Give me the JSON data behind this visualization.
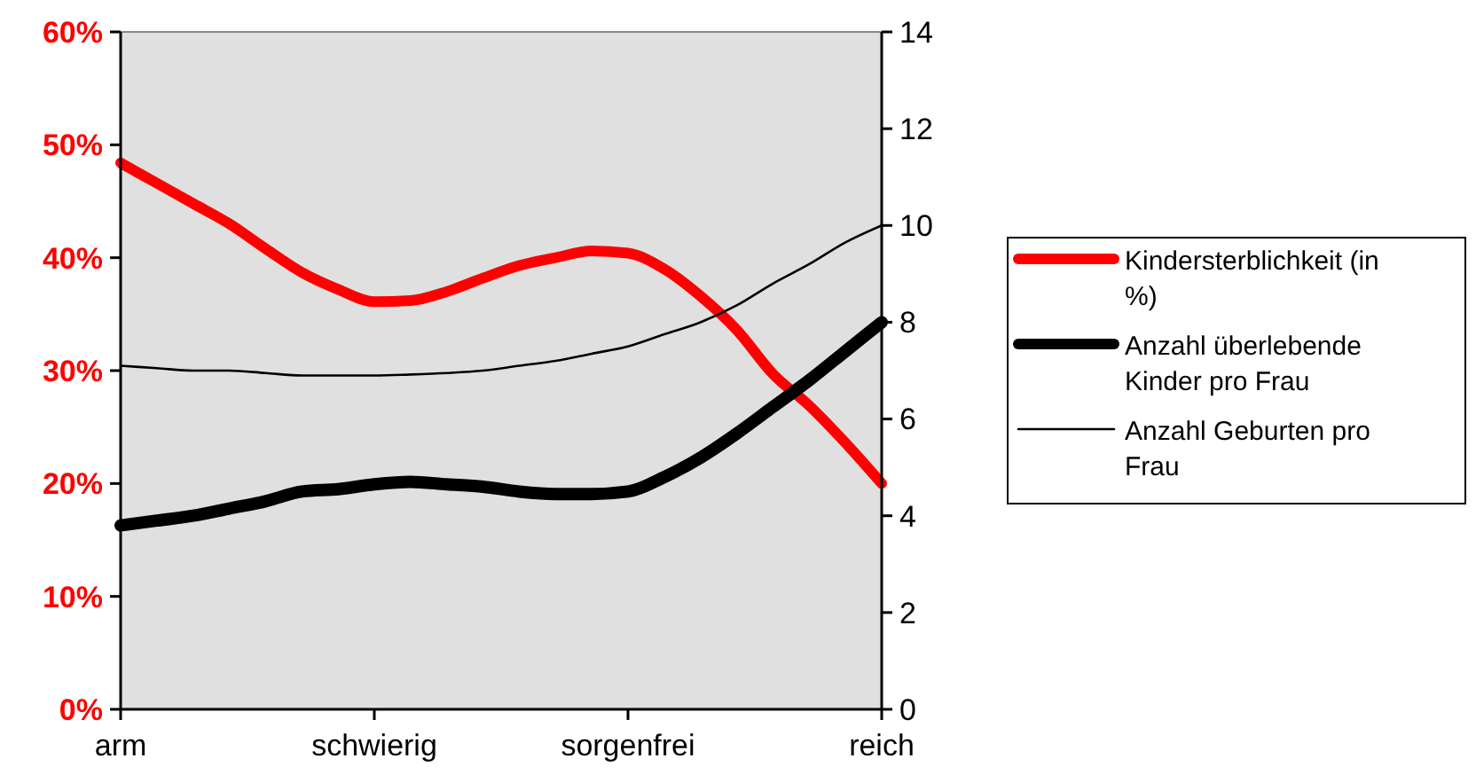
{
  "chart_data": {
    "type": "line",
    "categories": [
      "arm",
      null,
      null,
      null,
      null,
      null,
      null,
      "schwierig",
      null,
      null,
      null,
      null,
      null,
      null,
      "sorgenfrei",
      null,
      null,
      null,
      null,
      null,
      null,
      "reich"
    ],
    "ylim": [
      0,
      60
    ],
    "yticks": [
      {
        "value": 0,
        "label": "0%"
      },
      {
        "value": 10,
        "label": "10%"
      },
      {
        "value": 20,
        "label": "20%"
      },
      {
        "value": 30,
        "label": "30%"
      },
      {
        "value": 40,
        "label": "40%"
      },
      {
        "value": 50,
        "label": "50%"
      },
      {
        "value": 60,
        "label": "60%"
      }
    ],
    "y2lim": [
      0,
      14
    ],
    "y2ticks": [
      0,
      2,
      4,
      6,
      8,
      10,
      12,
      14
    ],
    "series": [
      {
        "name": "Kindersterblichkeit (in %)",
        "color": "#ff0000",
        "values": [
          48.4,
          46.6,
          44.8,
          43.0,
          40.8,
          38.7,
          37.2,
          36.1,
          36.2,
          37.0,
          38.2,
          39.3,
          40.0,
          40.6,
          40.4,
          39.0,
          36.6,
          33.6,
          29.7,
          26.9,
          23.6,
          20.0
        ]
      },
      {
        "name": "Anzahl überlebende Kinder pro Frau",
        "color": "#000000",
        "axis": "y2",
        "values": [
          3.8,
          3.9,
          4.0,
          4.15,
          4.3,
          4.5,
          4.55,
          4.65,
          4.7,
          4.65,
          4.6,
          4.5,
          4.45,
          4.45,
          4.5,
          4.8,
          5.2,
          5.7,
          6.25,
          6.8,
          7.4,
          8.0
        ]
      },
      {
        "name": "Anzahl Geburten pro Frau",
        "color": "#000000",
        "axis": "y2",
        "values": [
          7.1,
          7.05,
          7.0,
          7.0,
          6.95,
          6.9,
          6.9,
          6.9,
          6.92,
          6.95,
          7.0,
          7.1,
          7.2,
          7.35,
          7.5,
          7.75,
          8.0,
          8.35,
          8.8,
          9.2,
          9.65,
          10.0
        ]
      }
    ],
    "grid": false,
    "legend": "right"
  }
}
